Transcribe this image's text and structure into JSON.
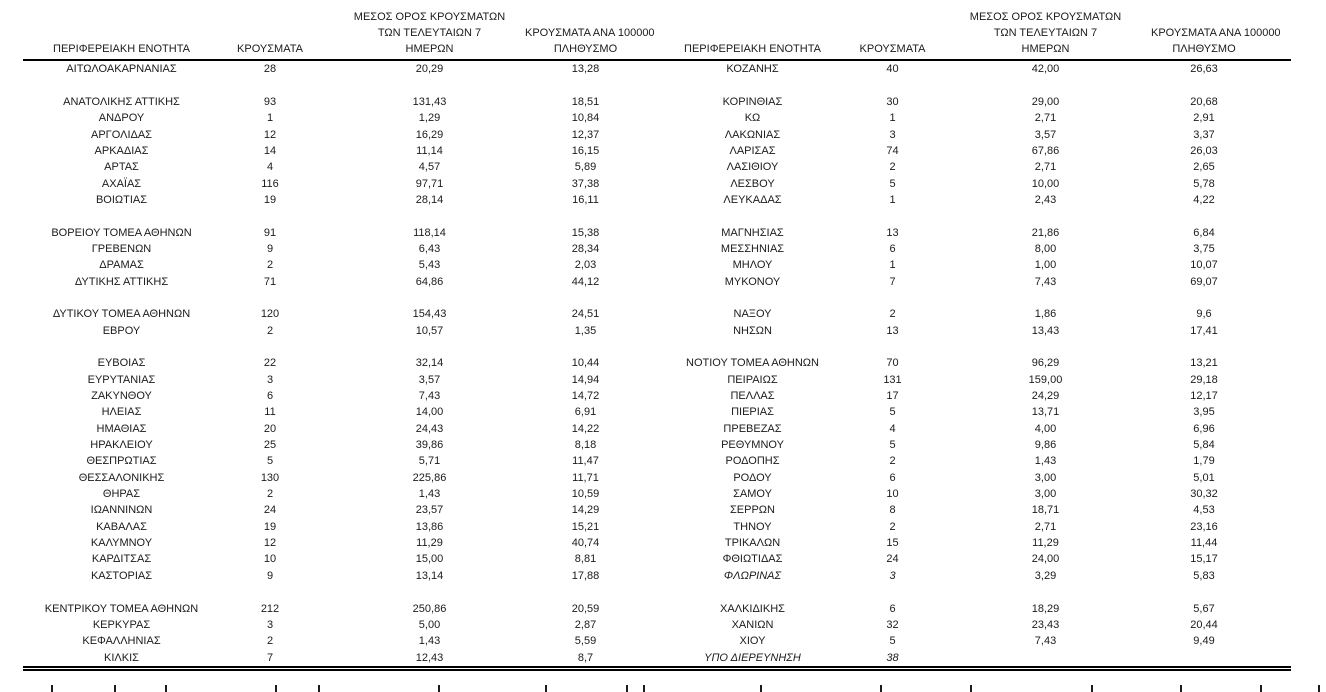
{
  "table": {
    "headers": {
      "region": "ΠΕΡΙΦΕΡΕΙΑΚΗ ΕΝΟΤΗΤΑ",
      "cases": "ΚΡΟΥΣΜΑΤΑ",
      "avg7_line1": "ΜΕΣΟΣ ΟΡΟΣ ΚΡΟΥΣΜΑΤΩΝ",
      "avg7_line2": "ΤΩΝ ΤΕΛΕΥΤΑΙΩΝ 7",
      "avg7_line3": "ΗΜΕΡΩΝ",
      "per100k_line1": "ΚΡΟΥΣΜΑΤΑ ΑΝΑ 100000",
      "per100k_line2": "ΠΛΗΘΥΣΜΟ"
    },
    "rows": [
      {
        "left": [
          "ΑΙΤΩΛΟΑΚΑΡΝΑΝΙΑΣ",
          "28",
          "20,29",
          "13,28"
        ],
        "right": [
          "ΚΟΖΑΝΗΣ",
          "40",
          "42,00",
          "26,63"
        ]
      },
      {
        "left": null,
        "right": null
      },
      {
        "left": [
          "ΑΝΑΤΟΛΙΚΗΣ ΑΤΤΙΚΗΣ",
          "93",
          "131,43",
          "18,51"
        ],
        "right": [
          "ΚΟΡΙΝΘΙΑΣ",
          "30",
          "29,00",
          "20,68"
        ]
      },
      {
        "left": [
          "ΑΝΔΡΟΥ",
          "1",
          "1,29",
          "10,84"
        ],
        "right": [
          "ΚΩ",
          "1",
          "2,71",
          "2,91"
        ]
      },
      {
        "left": [
          "ΑΡΓΟΛΙΔΑΣ",
          "12",
          "16,29",
          "12,37"
        ],
        "right": [
          "ΛΑΚΩΝΙΑΣ",
          "3",
          "3,57",
          "3,37"
        ]
      },
      {
        "left": [
          "ΑΡΚΑΔΙΑΣ",
          "14",
          "11,14",
          "16,15"
        ],
        "right": [
          "ΛΑΡΙΣΑΣ",
          "74",
          "67,86",
          "26,03"
        ]
      },
      {
        "left": [
          "ΑΡΤΑΣ",
          "4",
          "4,57",
          "5,89"
        ],
        "right": [
          "ΛΑΣΙΘΙΟΥ",
          "2",
          "2,71",
          "2,65"
        ]
      },
      {
        "left": [
          "ΑΧΑΪΑΣ",
          "116",
          "97,71",
          "37,38"
        ],
        "right": [
          "ΛΕΣΒΟΥ",
          "5",
          "10,00",
          "5,78"
        ]
      },
      {
        "left": [
          "ΒΟΙΩΤΙΑΣ",
          "19",
          "28,14",
          "16,11"
        ],
        "right": [
          "ΛΕΥΚΑΔΑΣ",
          "1",
          "2,43",
          "4,22"
        ]
      },
      {
        "left": null,
        "right": null
      },
      {
        "left": [
          "ΒΟΡΕΙΟΥ ΤΟΜΕΑ ΑΘΗΝΩΝ",
          "91",
          "118,14",
          "15,38"
        ],
        "right": [
          "ΜΑΓΝΗΣΙΑΣ",
          "13",
          "21,86",
          "6,84"
        ]
      },
      {
        "left": [
          "ΓΡΕΒΕΝΩΝ",
          "9",
          "6,43",
          "28,34"
        ],
        "right": [
          "ΜΕΣΣΗΝΙΑΣ",
          "6",
          "8,00",
          "3,75"
        ]
      },
      {
        "left": [
          "ΔΡΑΜΑΣ",
          "2",
          "5,43",
          "2,03"
        ],
        "right": [
          "ΜΗΛΟΥ",
          "1",
          "1,00",
          "10,07"
        ]
      },
      {
        "left": [
          "ΔΥΤΙΚΗΣ ΑΤΤΙΚΗΣ",
          "71",
          "64,86",
          "44,12"
        ],
        "right": [
          "ΜΥΚΟΝΟΥ",
          "7",
          "7,43",
          "69,07"
        ]
      },
      {
        "left": null,
        "right": null
      },
      {
        "left": [
          "ΔΥΤΙΚΟΥ ΤΟΜΕΑ ΑΘΗΝΩΝ",
          "120",
          "154,43",
          "24,51"
        ],
        "right": [
          "ΝΑΞΟΥ",
          "2",
          "1,86",
          "9,6"
        ]
      },
      {
        "left": [
          "ΕΒΡΟΥ",
          "2",
          "10,57",
          "1,35"
        ],
        "right": [
          "ΝΗΣΩΝ",
          "13",
          "13,43",
          "17,41"
        ]
      },
      {
        "left": null,
        "right": null
      },
      {
        "left": [
          "ΕΥΒΟΙΑΣ",
          "22",
          "32,14",
          "10,44"
        ],
        "right": [
          "ΝΟΤΙΟΥ ΤΟΜΕΑ ΑΘΗΝΩΝ",
          "70",
          "96,29",
          "13,21"
        ]
      },
      {
        "left": [
          "ΕΥΡΥΤΑΝΙΑΣ",
          "3",
          "3,57",
          "14,94"
        ],
        "right": [
          "ΠΕΙΡΑΙΩΣ",
          "131",
          "159,00",
          "29,18"
        ]
      },
      {
        "left": [
          "ΖΑΚΥΝΘΟΥ",
          "6",
          "7,43",
          "14,72"
        ],
        "right": [
          "ΠΕΛΛΑΣ",
          "17",
          "24,29",
          "12,17"
        ]
      },
      {
        "left": [
          "ΗΛΕΙΑΣ",
          "11",
          "14,00",
          "6,91"
        ],
        "right": [
          "ΠΙΕΡΙΑΣ",
          "5",
          "13,71",
          "3,95"
        ]
      },
      {
        "left": [
          "ΗΜΑΘΙΑΣ",
          "20",
          "24,43",
          "14,22"
        ],
        "right": [
          "ΠΡΕΒΕΖΑΣ",
          "4",
          "4,00",
          "6,96"
        ]
      },
      {
        "left": [
          "ΗΡΑΚΛΕΙΟΥ",
          "25",
          "39,86",
          "8,18"
        ],
        "right": [
          "ΡΕΘΥΜΝΟΥ",
          "5",
          "9,86",
          "5,84"
        ]
      },
      {
        "left": [
          "ΘΕΣΠΡΩΤΙΑΣ",
          "5",
          "5,71",
          "11,47"
        ],
        "right": [
          "ΡΟΔΟΠΗΣ",
          "2",
          "1,43",
          "1,79"
        ]
      },
      {
        "left": [
          "ΘΕΣΣΑΛΟΝΙΚΗΣ",
          "130",
          "225,86",
          "11,71"
        ],
        "right": [
          "ΡΟΔΟΥ",
          "6",
          "3,00",
          "5,01"
        ]
      },
      {
        "left": [
          "ΘΗΡΑΣ",
          "2",
          "1,43",
          "10,59"
        ],
        "right": [
          "ΣΑΜΟΥ",
          "10",
          "3,00",
          "30,32"
        ]
      },
      {
        "left": [
          "ΙΩΑΝΝΙΝΩΝ",
          "24",
          "23,57",
          "14,29"
        ],
        "right": [
          "ΣΕΡΡΩΝ",
          "8",
          "18,71",
          "4,53"
        ]
      },
      {
        "left": [
          "ΚΑΒΑΛΑΣ",
          "19",
          "13,86",
          "15,21"
        ],
        "right": [
          "ΤΗΝΟΥ",
          "2",
          "2,71",
          "23,16"
        ]
      },
      {
        "left": [
          "ΚΑΛΥΜΝΟΥ",
          "12",
          "11,29",
          "40,74"
        ],
        "right": [
          "ΤΡΙΚΑΛΩΝ",
          "15",
          "11,29",
          "11,44"
        ]
      },
      {
        "left": [
          "ΚΑΡΔΙΤΣΑΣ",
          "10",
          "15,00",
          "8,81"
        ],
        "right": [
          "ΦΘΙΩΤΙΔΑΣ",
          "24",
          "24,00",
          "15,17"
        ]
      },
      {
        "left": [
          "ΚΑΣΤΟΡΙΑΣ",
          "9",
          "13,14",
          "17,88"
        ],
        "right": [
          "ΦΛΩΡΙΝΑΣ",
          "3",
          "3,29",
          "5,83"
        ],
        "right_italic": [
          true,
          true,
          false,
          false
        ]
      },
      {
        "left": null,
        "right": null
      },
      {
        "left": [
          "ΚΕΝΤΡΙΚΟΥ ΤΟΜΕΑ ΑΘΗΝΩΝ",
          "212",
          "250,86",
          "20,59"
        ],
        "right": [
          "ΧΑΛΚΙΔΙΚΗΣ",
          "6",
          "18,29",
          "5,67"
        ]
      },
      {
        "left": [
          "ΚΕΡΚΥΡΑΣ",
          "3",
          "5,00",
          "2,87"
        ],
        "right": [
          "ΧΑΝΙΩΝ",
          "32",
          "23,43",
          "20,44"
        ]
      },
      {
        "left": [
          "ΚΕΦΑΛΛΗΝΙΑΣ",
          "2",
          "1,43",
          "5,59"
        ],
        "right": [
          "ΧΙΟΥ",
          "5",
          "7,43",
          "9,49"
        ]
      },
      {
        "left": [
          "ΚΙΛΚΙΣ",
          "7",
          "12,43",
          "8,7"
        ],
        "right": [
          "ΥΠΟ ΔΙΕΡΕΥΝΗΣΗ",
          "38",
          "",
          ""
        ],
        "right_italic": [
          true,
          true,
          false,
          false
        ]
      }
    ]
  },
  "clipped_next_line_mark_positions": [
    51,
    114,
    165,
    275,
    318,
    438,
    545,
    626,
    643,
    760,
    880,
    970,
    1091,
    1180,
    1260,
    1318
  ]
}
